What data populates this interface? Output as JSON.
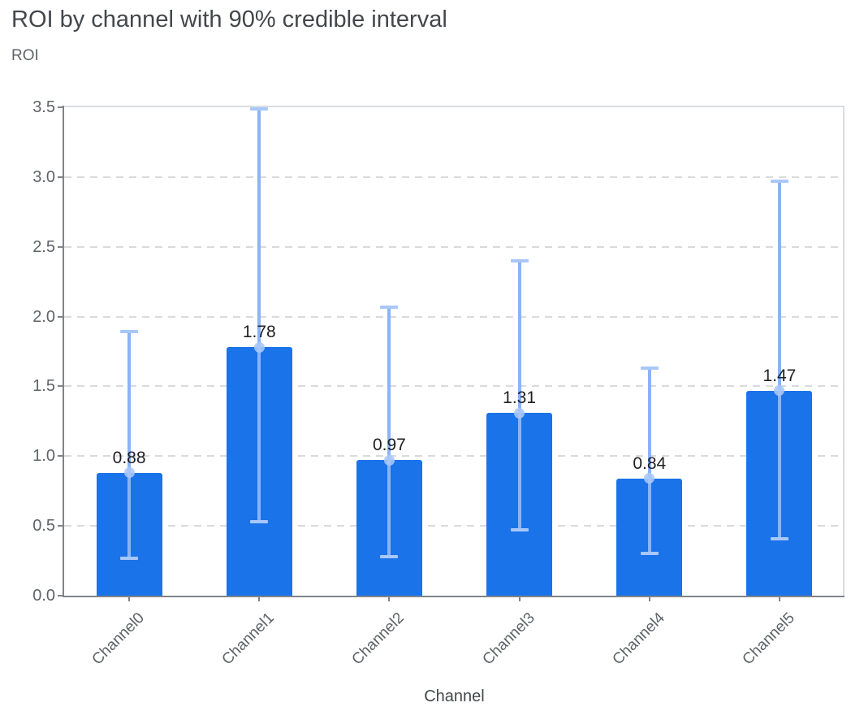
{
  "chart_data": {
    "type": "bar",
    "title": "ROI by channel with 90% credible interval",
    "ylabel": "ROI",
    "xlabel": "Channel",
    "categories": [
      "Channel0",
      "Channel1",
      "Channel2",
      "Channel3",
      "Channel4",
      "Channel5"
    ],
    "series": [
      {
        "name": "ROI",
        "values": [
          0.88,
          1.78,
          0.97,
          1.31,
          0.84,
          1.47
        ]
      }
    ],
    "error_bars": {
      "label": "90% credible interval",
      "lower": [
        0.27,
        0.53,
        0.28,
        0.47,
        0.3,
        0.41
      ],
      "upper": [
        1.89,
        3.49,
        2.07,
        2.4,
        1.63,
        2.97
      ]
    },
    "value_labels": [
      "0.88",
      "1.78",
      "0.97",
      "1.31",
      "0.84",
      "1.47"
    ],
    "ylim": [
      0,
      3.5
    ],
    "ytick_step": 0.5,
    "yticks": [
      "0.0",
      "0.5",
      "1.0",
      "1.5",
      "2.0",
      "2.5",
      "3.0",
      "3.5"
    ],
    "grid": "horizontal-dashed",
    "legend": "none",
    "colors": {
      "bar": "#1a73e8",
      "error_line": "#8ab4f8",
      "error_cap": "#a8c7fa",
      "marker": "#a8c7fa",
      "gridline": "#d9dadc",
      "axis": "#7f8489",
      "frame": "#dadce0",
      "tick_label": "#5f6368",
      "value_label": "#202124",
      "title": "#44474b"
    }
  }
}
